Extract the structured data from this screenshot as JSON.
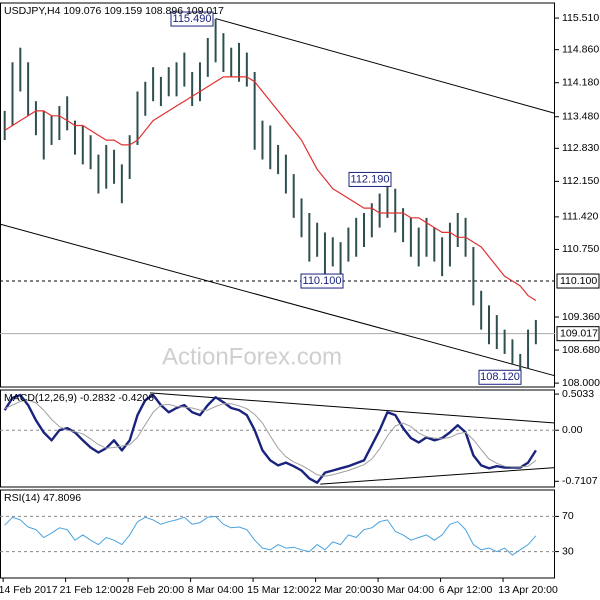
{
  "chart_data": [
    {
      "type": "range-bar",
      "title": "USDJPY,H4  109.076 109.159 108.896 109.017",
      "watermark": "ActionForex.com",
      "color": "#2f4f4f",
      "xlim": [
        -0.6,
        70.45
      ],
      "ylim": [
        107.92,
        115.82
      ],
      "yticks": [
        {
          "value": 115.51,
          "label": "115.510"
        },
        {
          "value": 114.86,
          "label": "114.860"
        },
        {
          "value": 114.18,
          "label": "114.180"
        },
        {
          "value": 113.48,
          "label": "113.480"
        },
        {
          "value": 112.83,
          "label": "112.830"
        },
        {
          "value": 112.15,
          "label": "112.150"
        },
        {
          "value": 111.42,
          "label": "111.420"
        },
        {
          "value": 110.75,
          "label": "110.750"
        },
        {
          "value": 109.36,
          "label": "109.360"
        },
        {
          "value": 108.68,
          "label": "108.680"
        },
        {
          "value": 108,
          "label": "108.000"
        }
      ],
      "high": [
        113.6,
        114.6,
        114.9,
        114.6,
        113.8,
        113.6,
        113.5,
        113.7,
        113.9,
        113.4,
        113.3,
        113.1,
        112.7,
        112.9,
        112.8,
        112.5,
        113.1,
        114.0,
        114.2,
        114.5,
        114.3,
        114.5,
        114.6,
        114.8,
        114.4,
        114.6,
        115.1,
        115.49,
        115.2,
        114.9,
        115.0,
        114.8,
        114.4,
        113.4,
        113.3,
        112.9,
        112.7,
        112.3,
        111.8,
        111.5,
        111.3,
        111.1,
        111.0,
        110.9,
        111.2,
        111.4,
        111.5,
        111.7,
        111.9,
        112.19,
        112.0,
        111.6,
        111.4,
        111.2,
        111.4,
        111.2,
        111.0,
        111.3,
        111.5,
        111.4,
        110.8,
        109.9,
        109.6,
        109.4,
        109.1,
        108.9,
        108.6,
        109.1,
        109.3
      ],
      "low": [
        113.0,
        113.3,
        114.0,
        113.5,
        113.1,
        112.6,
        112.9,
        113.0,
        113.2,
        112.7,
        112.5,
        112.4,
        111.9,
        112.0,
        112.1,
        111.7,
        112.2,
        112.9,
        113.5,
        113.8,
        113.7,
        113.9,
        113.9,
        114.1,
        113.7,
        113.8,
        114.3,
        114.6,
        114.4,
        114.3,
        114.2,
        114.1,
        112.8,
        112.6,
        112.4,
        112.3,
        111.9,
        111.4,
        111.0,
        110.5,
        110.6,
        110.2,
        110.4,
        110.08,
        110.5,
        110.6,
        110.8,
        111.0,
        111.2,
        111.4,
        111.1,
        110.9,
        110.6,
        110.4,
        110.6,
        110.5,
        110.2,
        110.4,
        110.8,
        110.6,
        109.6,
        109.1,
        108.8,
        108.7,
        108.6,
        108.4,
        108.12,
        108.3,
        108.8
      ],
      "lines": [
        {
          "color": "#e03030",
          "width": 1.2,
          "values": [
            113.2,
            113.3,
            113.4,
            113.5,
            113.6,
            113.6,
            113.5,
            113.5,
            113.4,
            113.3,
            113.3,
            113.2,
            113.1,
            113.0,
            113.0,
            112.9,
            112.9,
            113.0,
            113.2,
            113.4,
            113.5,
            113.6,
            113.7,
            113.8,
            113.9,
            114.0,
            114.1,
            114.2,
            114.3,
            114.3,
            114.3,
            114.3,
            114.2,
            114.0,
            113.8,
            113.6,
            113.4,
            113.2,
            113.0,
            112.7,
            112.4,
            112.2,
            112.0,
            111.9,
            111.8,
            111.7,
            111.6,
            111.6,
            111.5,
            111.5,
            111.5,
            111.5,
            111.4,
            111.4,
            111.3,
            111.2,
            111.1,
            111.1,
            111.0,
            111.0,
            110.9,
            110.8,
            110.6,
            110.4,
            110.2,
            110.1,
            110.0,
            109.8,
            109.7
          ]
        }
      ],
      "trendlines": [
        {
          "x": [
            27,
            70.45
          ],
          "y": [
            115.5,
            113.55
          ]
        },
        {
          "x": [
            -0.6,
            70.45
          ],
          "y": [
            111.27,
            108.15
          ]
        }
      ],
      "annotations": [
        {
          "label": "115.490",
          "value": 115.49
        },
        {
          "label": "112.190",
          "value": 112.19
        },
        {
          "label": "110.100",
          "value": 110.1
        },
        {
          "label": "108.120",
          "value": 108.12
        }
      ],
      "hlines": [
        {
          "value": 110.1,
          "label": "110.100",
          "dashed": true,
          "color": "#000000"
        },
        {
          "value": 109.017,
          "label": "109.017",
          "dashed": false,
          "color": "#aaaaaa"
        }
      ]
    },
    {
      "type": "line",
      "title": "MACD(12,26,9) -0.2832 -0.4206",
      "xlim": [
        -0.6,
        70.45
      ],
      "ylim": [
        -0.79,
        0.56
      ],
      "yticks": [
        0.5033,
        {
          "value": 0,
          "label": "0.00"
        },
        -0.7107
      ],
      "lines": [
        {
          "color": "#1a237e",
          "width": 2.4,
          "values": [
            0.28,
            0.45,
            0.49,
            0.35,
            0.14,
            -0.03,
            -0.14,
            0,
            0.03,
            -0.03,
            -0.14,
            -0.24,
            -0.31,
            -0.25,
            -0.14,
            -0.28,
            -0.14,
            0.21,
            0.42,
            0.49,
            0.35,
            0.25,
            0.31,
            0.35,
            0.25,
            0.21,
            0.35,
            0.46,
            0.39,
            0.31,
            0.28,
            0.21,
            0,
            -0.28,
            -0.42,
            -0.49,
            -0.45,
            -0.5,
            -0.56,
            -0.67,
            -0.73,
            -0.59,
            -0.56,
            -0.53,
            -0.5,
            -0.46,
            -0.42,
            -0.21,
            0,
            0.25,
            0.21,
            0.03,
            -0.11,
            -0.17,
            -0.1,
            -0.14,
            -0.11,
            -0.03,
            0.07,
            -0.03,
            -0.35,
            -0.49,
            -0.53,
            -0.5,
            -0.52,
            -0.52,
            -0.52,
            -0.45,
            -0.28
          ]
        },
        {
          "color": "#a0a0a0",
          "width": 1,
          "values": [
            0.3,
            0.35,
            0.4,
            0.42,
            0.38,
            0.28,
            0.15,
            0.05,
            0,
            -0.02,
            -0.05,
            -0.12,
            -0.2,
            -0.25,
            -0.24,
            -0.22,
            -0.2,
            -0.1,
            0.08,
            0.25,
            0.35,
            0.36,
            0.33,
            0.32,
            0.31,
            0.28,
            0.28,
            0.33,
            0.37,
            0.37,
            0.34,
            0.3,
            0.22,
            0.1,
            -0.08,
            -0.25,
            -0.37,
            -0.44,
            -0.49,
            -0.55,
            -0.62,
            -0.64,
            -0.62,
            -0.59,
            -0.56,
            -0.52,
            -0.48,
            -0.4,
            -0.26,
            -0.08,
            0.06,
            0.1,
            0.05,
            -0.04,
            -0.09,
            -0.11,
            -0.12,
            -0.1,
            -0.05,
            -0.03,
            -0.13,
            -0.27,
            -0.4,
            -0.46,
            -0.5,
            -0.51,
            -0.51,
            -0.5,
            -0.42
          ]
        }
      ],
      "trendlines": [
        {
          "x": [
            18.6,
            70.45
          ],
          "y": [
            0.52,
            0.1
          ]
        },
        {
          "x": [
            40.4,
            70.45
          ],
          "y": [
            -0.75,
            -0.52
          ]
        }
      ],
      "hlines": [
        {
          "value": 0,
          "dashed": true,
          "color": "#888888"
        }
      ]
    },
    {
      "type": "line",
      "title": "RSI(14) 47.8096",
      "xlim": [
        -0.6,
        70.45
      ],
      "ylim": [
        0,
        100
      ],
      "yticks": [
        70,
        30
      ],
      "xticks": [
        {
          "value": 3,
          "label": "14 Feb 2017"
        },
        {
          "value": 11,
          "label": "21 Feb 12:00"
        },
        {
          "value": 19,
          "label": "28 Feb 20:00"
        },
        {
          "value": 27,
          "label": "8 Mar 04:00"
        },
        {
          "value": 35,
          "label": "15 Mar 12:00"
        },
        {
          "value": 43,
          "label": "22 Mar 20:00"
        },
        {
          "value": 51,
          "label": "30 Mar 04:00"
        },
        {
          "value": 59,
          "label": "6 Apr 12:00"
        },
        {
          "value": 67,
          "label": "13 Apr 20:00"
        }
      ],
      "lines": [
        {
          "color": "#4aa3df",
          "width": 1,
          "values": [
            60,
            69,
            66,
            58,
            55,
            46,
            51,
            57,
            55,
            43,
            49,
            43,
            38,
            46,
            43,
            38,
            49,
            64,
            69,
            66,
            61,
            64,
            66,
            69,
            61,
            63,
            69,
            70,
            61,
            57,
            58,
            55,
            43,
            34,
            32,
            38,
            34,
            35,
            32,
            30,
            38,
            32,
            41,
            38,
            49,
            46,
            55,
            57,
            64,
            66,
            53,
            49,
            43,
            46,
            49,
            43,
            49,
            61,
            64,
            55,
            38,
            32,
            34,
            30,
            34,
            26,
            32,
            38,
            48
          ]
        }
      ],
      "hlines": [
        {
          "value": 70,
          "dashed": true,
          "color": "#888888"
        },
        {
          "value": 30,
          "dashed": true,
          "color": "#888888"
        }
      ]
    }
  ]
}
